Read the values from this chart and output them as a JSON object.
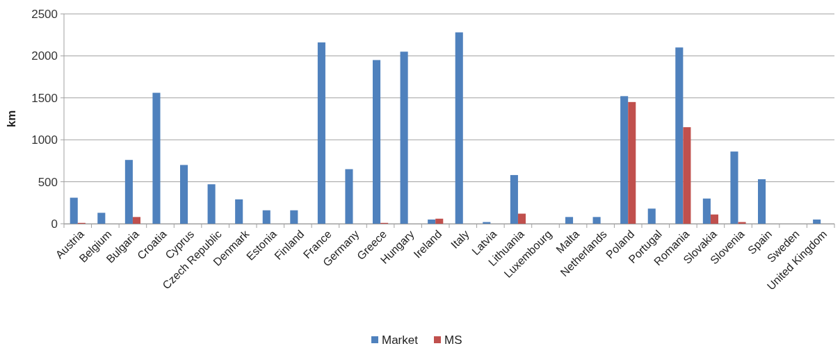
{
  "chart_data": {
    "type": "bar",
    "ylabel": "km",
    "categories": [
      "Austria",
      "Belgium",
      "Bulgaria",
      "Croatia",
      "Cyprus",
      "Czech Republic",
      "Denmark",
      "Estonia",
      "Finland",
      "France",
      "Germany",
      "Greece",
      "Hungary",
      "Ireland",
      "Italy",
      "Latvia",
      "Lithuania",
      "Luxembourg",
      "Malta",
      "Netherlands",
      "Poland",
      "Portugal",
      "Romania",
      "Slovakia",
      "Slovenia",
      "Spain",
      "Sweden",
      "United Kingdom"
    ],
    "series": [
      {
        "name": "Market",
        "color": "#4f81bd",
        "values": [
          310,
          130,
          760,
          1560,
          700,
          470,
          290,
          160,
          160,
          2160,
          650,
          1950,
          2050,
          50,
          2280,
          20,
          580,
          null,
          80,
          80,
          1520,
          180,
          2100,
          300,
          860,
          530,
          null,
          50
        ]
      },
      {
        "name": "MS",
        "color": "#c0504d",
        "values": [
          10,
          null,
          80,
          null,
          null,
          null,
          null,
          null,
          null,
          null,
          null,
          10,
          null,
          60,
          null,
          null,
          120,
          null,
          null,
          null,
          1450,
          null,
          1150,
          110,
          20,
          null,
          null,
          null
        ]
      }
    ],
    "ylim": [
      0,
      2500
    ],
    "yticks": [
      0,
      500,
      1000,
      1500,
      2000,
      2500
    ],
    "grid": "y",
    "legend": "bottom"
  }
}
